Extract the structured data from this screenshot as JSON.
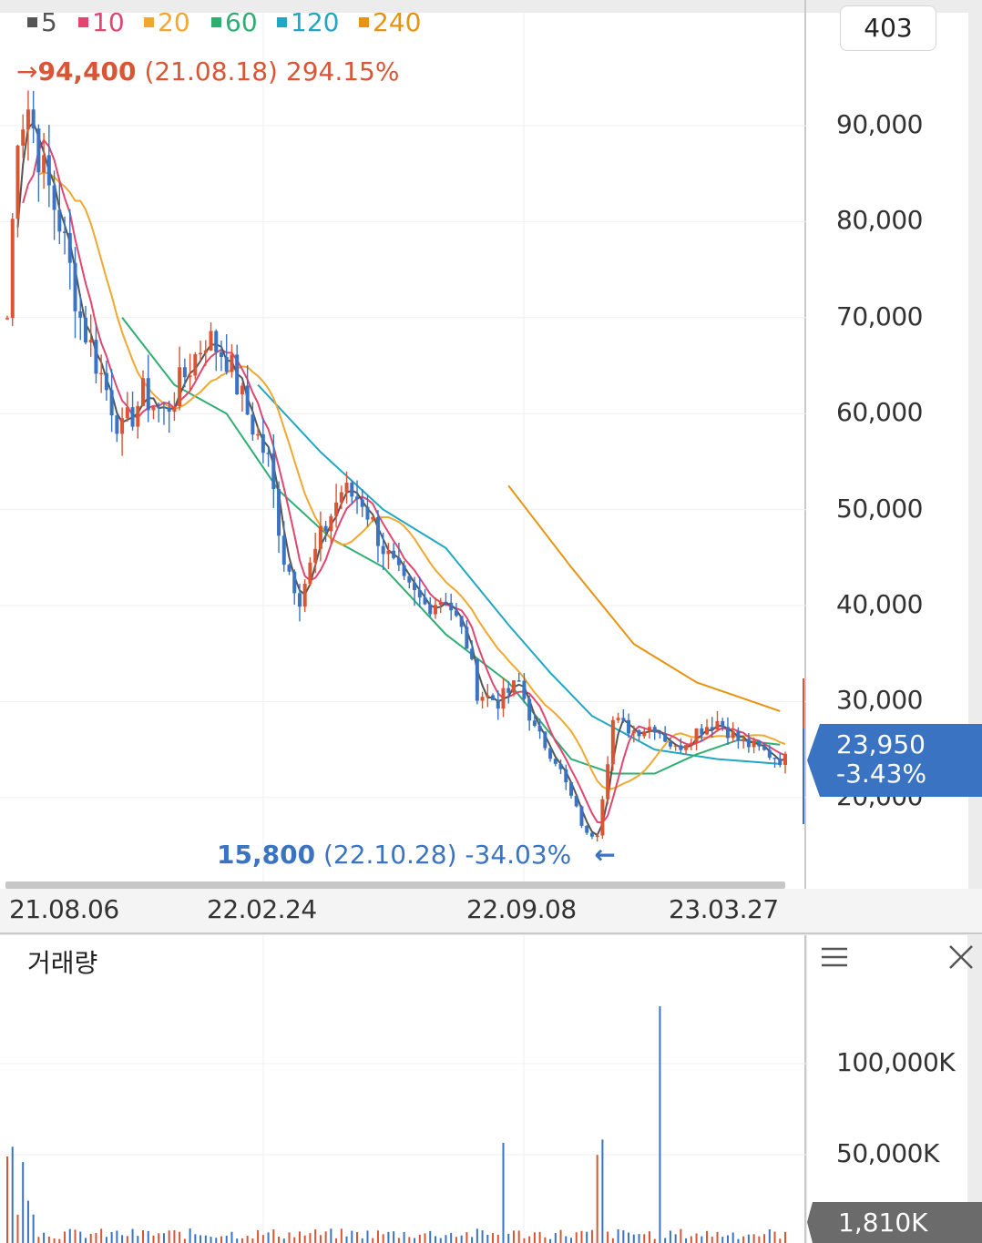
{
  "legend": [
    {
      "label": "5",
      "color": "#555555"
    },
    {
      "label": "10",
      "color": "#e0466f"
    },
    {
      "label": "20",
      "color": "#f0a830"
    },
    {
      "label": "60",
      "color": "#2fae72"
    },
    {
      "label": "120",
      "color": "#1fa7c4"
    },
    {
      "label": "240",
      "color": "#e8930f"
    }
  ],
  "counter": "403",
  "high": {
    "arrow": "→",
    "price": "94,400",
    "date": "(21.08.18)",
    "pct": "294.15%"
  },
  "low": {
    "price": "15,800",
    "date": "(22.10.28)",
    "pct": "-34.03%",
    "arrow": "←"
  },
  "current": {
    "price": "23,950",
    "change": "-3.43%"
  },
  "volume_panel": {
    "title": "거래량",
    "current": "1,810K"
  },
  "colors": {
    "up": "#d95534",
    "down": "#3a73c2",
    "accent": "#3a73c2",
    "volume_box": "#6b6b6b"
  },
  "chart_data": {
    "type": "candlestick",
    "price_axis": {
      "labels": [
        "90,000",
        "80,000",
        "70,000",
        "60,000",
        "50,000",
        "40,000",
        "30,000",
        "20,000"
      ],
      "range": [
        13000,
        97000
      ]
    },
    "date_axis": {
      "labels": [
        "21.08.06",
        "22.02.24",
        "22.09.08",
        "23.03.27"
      ]
    },
    "volume_axis": {
      "labels": [
        "100,000K",
        "50,000K"
      ]
    },
    "price_path": [
      [
        0,
        70000
      ],
      [
        2,
        90000
      ],
      [
        4,
        92000
      ],
      [
        7,
        85000
      ],
      [
        10,
        80000
      ],
      [
        14,
        70000
      ],
      [
        18,
        64000
      ],
      [
        22,
        58000
      ],
      [
        26,
        62000
      ],
      [
        30,
        60000
      ],
      [
        34,
        64000
      ],
      [
        38,
        68000
      ],
      [
        42,
        66000
      ],
      [
        46,
        60000
      ],
      [
        50,
        55000
      ],
      [
        53,
        45000
      ],
      [
        56,
        41000
      ],
      [
        60,
        47000
      ],
      [
        64,
        52000
      ],
      [
        68,
        51000
      ],
      [
        72,
        46000
      ],
      [
        76,
        42000
      ],
      [
        80,
        40000
      ],
      [
        84,
        41000
      ],
      [
        88,
        36000
      ],
      [
        90,
        31000
      ],
      [
        94,
        30000
      ],
      [
        98,
        32000
      ],
      [
        101,
        27000
      ],
      [
        105,
        24000
      ],
      [
        108,
        20000
      ],
      [
        111,
        16000
      ],
      [
        113,
        16500
      ],
      [
        116,
        28000
      ],
      [
        120,
        27000
      ],
      [
        124,
        27500
      ],
      [
        128,
        25000
      ],
      [
        132,
        27000
      ],
      [
        136,
        28000
      ],
      [
        140,
        26000
      ],
      [
        144,
        25000
      ],
      [
        148,
        24000
      ]
    ],
    "ma120": [
      [
        48,
        63000
      ],
      [
        60,
        56000
      ],
      [
        72,
        50000
      ],
      [
        84,
        46000
      ],
      [
        96,
        38000
      ],
      [
        104,
        33000
      ],
      [
        112,
        28500
      ],
      [
        124,
        25000
      ],
      [
        136,
        24000
      ],
      [
        148,
        23500
      ]
    ],
    "ma240": [
      [
        96,
        52500
      ],
      [
        108,
        44000
      ],
      [
        120,
        36000
      ],
      [
        132,
        32000
      ],
      [
        148,
        29000
      ]
    ],
    "ma60": [
      [
        22,
        70000
      ],
      [
        32,
        63000
      ],
      [
        42,
        60000
      ],
      [
        52,
        52000
      ],
      [
        62,
        47000
      ],
      [
        72,
        44000
      ],
      [
        84,
        37000
      ],
      [
        96,
        32000
      ],
      [
        108,
        24000
      ],
      [
        116,
        22500
      ],
      [
        124,
        22500
      ],
      [
        132,
        24500
      ],
      [
        140,
        26000
      ],
      [
        148,
        25500
      ]
    ],
    "volume_spike": {
      "index": 125,
      "value": 130000
    }
  }
}
